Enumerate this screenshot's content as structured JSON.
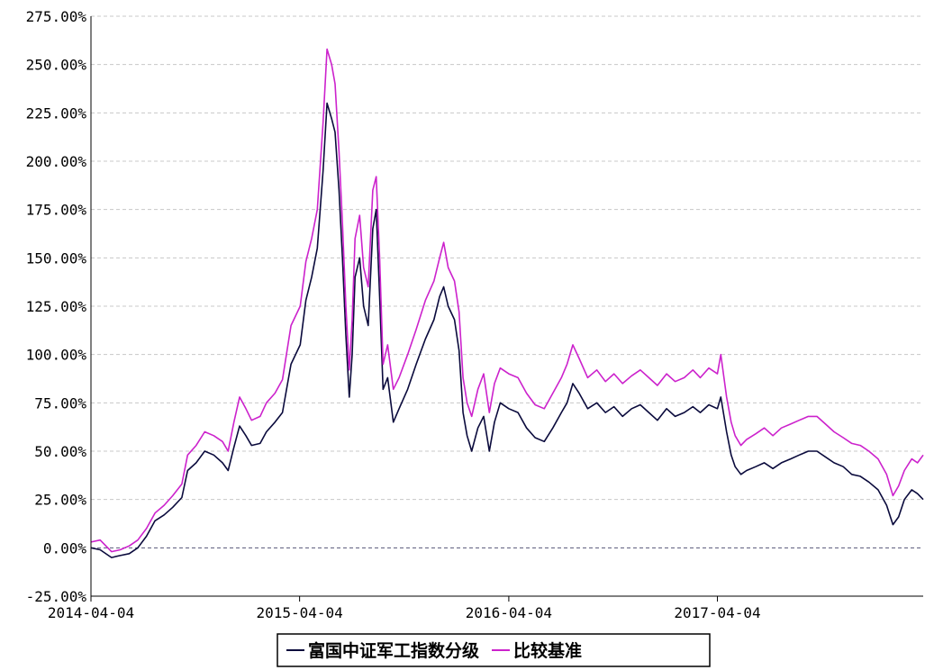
{
  "chart_data": {
    "type": "line",
    "title": "",
    "xlabel": "",
    "ylabel": "",
    "ylim": [
      -25,
      275
    ],
    "y_ticks": [
      "-25.00%",
      "0.00%",
      "25.00%",
      "50.00%",
      "75.00%",
      "100.00%",
      "125.00%",
      "150.00%",
      "175.00%",
      "200.00%",
      "225.00%",
      "250.00%",
      "275.00%"
    ],
    "x_range": [
      "2014-04-04",
      "2018-03-30"
    ],
    "x_ticks": [
      "2014-04-04",
      "2015-04-04",
      "2016-04-04",
      "2017-04-04"
    ],
    "grid": "horizontal-dashed",
    "legend_position": "bottom-center",
    "series": [
      {
        "name": "富国中证军工指数分级",
        "color": "#0a0a3c",
        "points": [
          [
            "2014-04-04",
            0
          ],
          [
            "2014-04-20",
            -1
          ],
          [
            "2014-05-10",
            -5
          ],
          [
            "2014-05-25",
            -4
          ],
          [
            "2014-06-10",
            -3
          ],
          [
            "2014-06-25",
            0
          ],
          [
            "2014-07-10",
            6
          ],
          [
            "2014-07-25",
            14
          ],
          [
            "2014-08-10",
            17
          ],
          [
            "2014-08-25",
            21
          ],
          [
            "2014-09-10",
            26
          ],
          [
            "2014-09-20",
            40
          ],
          [
            "2014-10-05",
            44
          ],
          [
            "2014-10-20",
            50
          ],
          [
            "2014-11-05",
            48
          ],
          [
            "2014-11-20",
            44
          ],
          [
            "2014-11-30",
            40
          ],
          [
            "2014-12-10",
            52
          ],
          [
            "2014-12-20",
            63
          ],
          [
            "2014-12-31",
            58
          ],
          [
            "2015-01-10",
            53
          ],
          [
            "2015-01-25",
            54
          ],
          [
            "2015-02-05",
            60
          ],
          [
            "2015-02-20",
            65
          ],
          [
            "2015-03-05",
            70
          ],
          [
            "2015-03-20",
            95
          ],
          [
            "2015-04-05",
            105
          ],
          [
            "2015-04-15",
            128
          ],
          [
            "2015-04-25",
            140
          ],
          [
            "2015-05-05",
            155
          ],
          [
            "2015-05-15",
            195
          ],
          [
            "2015-05-22",
            230
          ],
          [
            "2015-05-30",
            222
          ],
          [
            "2015-06-05",
            215
          ],
          [
            "2015-06-12",
            185
          ],
          [
            "2015-06-18",
            150
          ],
          [
            "2015-06-24",
            110
          ],
          [
            "2015-06-30",
            78
          ],
          [
            "2015-07-05",
            100
          ],
          [
            "2015-07-10",
            140
          ],
          [
            "2015-07-18",
            150
          ],
          [
            "2015-07-25",
            125
          ],
          [
            "2015-08-02",
            115
          ],
          [
            "2015-08-10",
            165
          ],
          [
            "2015-08-16",
            175
          ],
          [
            "2015-08-22",
            130
          ],
          [
            "2015-08-28",
            82
          ],
          [
            "2015-09-05",
            88
          ],
          [
            "2015-09-15",
            65
          ],
          [
            "2015-09-25",
            72
          ],
          [
            "2015-10-10",
            82
          ],
          [
            "2015-10-25",
            95
          ],
          [
            "2015-11-10",
            108
          ],
          [
            "2015-11-25",
            118
          ],
          [
            "2015-12-05",
            130
          ],
          [
            "2015-12-12",
            135
          ],
          [
            "2015-12-20",
            125
          ],
          [
            "2015-12-31",
            118
          ],
          [
            "2016-01-08",
            102
          ],
          [
            "2016-01-15",
            70
          ],
          [
            "2016-01-22",
            58
          ],
          [
            "2016-01-30",
            50
          ],
          [
            "2016-02-10",
            62
          ],
          [
            "2016-02-20",
            68
          ],
          [
            "2016-03-01",
            50
          ],
          [
            "2016-03-10",
            65
          ],
          [
            "2016-03-20",
            75
          ],
          [
            "2016-04-04",
            72
          ],
          [
            "2016-04-20",
            70
          ],
          [
            "2016-05-05",
            62
          ],
          [
            "2016-05-20",
            57
          ],
          [
            "2016-06-05",
            55
          ],
          [
            "2016-06-20",
            62
          ],
          [
            "2016-07-05",
            70
          ],
          [
            "2016-07-15",
            75
          ],
          [
            "2016-07-25",
            85
          ],
          [
            "2016-08-05",
            80
          ],
          [
            "2016-08-20",
            72
          ],
          [
            "2016-09-05",
            75
          ],
          [
            "2016-09-20",
            70
          ],
          [
            "2016-10-05",
            73
          ],
          [
            "2016-10-20",
            68
          ],
          [
            "2016-11-05",
            72
          ],
          [
            "2016-11-20",
            74
          ],
          [
            "2016-12-05",
            70
          ],
          [
            "2016-12-20",
            66
          ],
          [
            "2017-01-05",
            72
          ],
          [
            "2017-01-20",
            68
          ],
          [
            "2017-02-05",
            70
          ],
          [
            "2017-02-20",
            73
          ],
          [
            "2017-03-05",
            70
          ],
          [
            "2017-03-20",
            74
          ],
          [
            "2017-04-04",
            72
          ],
          [
            "2017-04-10",
            78
          ],
          [
            "2017-04-20",
            60
          ],
          [
            "2017-04-28",
            48
          ],
          [
            "2017-05-05",
            42
          ],
          [
            "2017-05-15",
            38
          ],
          [
            "2017-05-25",
            40
          ],
          [
            "2017-06-10",
            42
          ],
          [
            "2017-06-25",
            44
          ],
          [
            "2017-07-10",
            41
          ],
          [
            "2017-07-25",
            44
          ],
          [
            "2017-08-10",
            46
          ],
          [
            "2017-08-25",
            48
          ],
          [
            "2017-09-10",
            50
          ],
          [
            "2017-09-25",
            50
          ],
          [
            "2017-10-10",
            47
          ],
          [
            "2017-10-25",
            44
          ],
          [
            "2017-11-10",
            42
          ],
          [
            "2017-11-25",
            38
          ],
          [
            "2017-12-10",
            37
          ],
          [
            "2017-12-25",
            34
          ],
          [
            "2018-01-10",
            30
          ],
          [
            "2018-01-25",
            22
          ],
          [
            "2018-02-05",
            12
          ],
          [
            "2018-02-15",
            16
          ],
          [
            "2018-02-25",
            25
          ],
          [
            "2018-03-10",
            30
          ],
          [
            "2018-03-20",
            28
          ],
          [
            "2018-03-30",
            25
          ]
        ]
      },
      {
        "name": "比较基准",
        "color": "#cc22cc",
        "points": [
          [
            "2014-04-04",
            3
          ],
          [
            "2014-04-20",
            4
          ],
          [
            "2014-05-10",
            -2
          ],
          [
            "2014-05-25",
            -1
          ],
          [
            "2014-06-10",
            1
          ],
          [
            "2014-06-25",
            4
          ],
          [
            "2014-07-10",
            10
          ],
          [
            "2014-07-25",
            18
          ],
          [
            "2014-08-10",
            22
          ],
          [
            "2014-08-25",
            27
          ],
          [
            "2014-09-10",
            33
          ],
          [
            "2014-09-20",
            48
          ],
          [
            "2014-10-05",
            53
          ],
          [
            "2014-10-20",
            60
          ],
          [
            "2014-11-05",
            58
          ],
          [
            "2014-11-20",
            55
          ],
          [
            "2014-11-30",
            50
          ],
          [
            "2014-12-10",
            65
          ],
          [
            "2014-12-20",
            78
          ],
          [
            "2014-12-31",
            72
          ],
          [
            "2015-01-10",
            66
          ],
          [
            "2015-01-25",
            68
          ],
          [
            "2015-02-05",
            75
          ],
          [
            "2015-02-20",
            80
          ],
          [
            "2015-03-05",
            87
          ],
          [
            "2015-03-20",
            115
          ],
          [
            "2015-04-05",
            125
          ],
          [
            "2015-04-15",
            148
          ],
          [
            "2015-04-25",
            160
          ],
          [
            "2015-05-05",
            175
          ],
          [
            "2015-05-15",
            220
          ],
          [
            "2015-05-22",
            258
          ],
          [
            "2015-05-30",
            250
          ],
          [
            "2015-06-05",
            240
          ],
          [
            "2015-06-12",
            205
          ],
          [
            "2015-06-18",
            168
          ],
          [
            "2015-06-24",
            125
          ],
          [
            "2015-06-30",
            92
          ],
          [
            "2015-07-05",
            118
          ],
          [
            "2015-07-10",
            160
          ],
          [
            "2015-07-18",
            172
          ],
          [
            "2015-07-25",
            145
          ],
          [
            "2015-08-02",
            135
          ],
          [
            "2015-08-10",
            185
          ],
          [
            "2015-08-16",
            192
          ],
          [
            "2015-08-22",
            150
          ],
          [
            "2015-08-28",
            95
          ],
          [
            "2015-09-05",
            105
          ],
          [
            "2015-09-15",
            82
          ],
          [
            "2015-09-25",
            88
          ],
          [
            "2015-10-10",
            100
          ],
          [
            "2015-10-25",
            113
          ],
          [
            "2015-11-10",
            128
          ],
          [
            "2015-11-25",
            138
          ],
          [
            "2015-12-05",
            150
          ],
          [
            "2015-12-12",
            158
          ],
          [
            "2015-12-20",
            145
          ],
          [
            "2015-12-31",
            138
          ],
          [
            "2016-01-08",
            122
          ],
          [
            "2016-01-15",
            88
          ],
          [
            "2016-01-22",
            75
          ],
          [
            "2016-01-30",
            68
          ],
          [
            "2016-02-10",
            82
          ],
          [
            "2016-02-20",
            90
          ],
          [
            "2016-03-01",
            70
          ],
          [
            "2016-03-10",
            85
          ],
          [
            "2016-03-20",
            93
          ],
          [
            "2016-04-04",
            90
          ],
          [
            "2016-04-20",
            88
          ],
          [
            "2016-05-05",
            80
          ],
          [
            "2016-05-20",
            74
          ],
          [
            "2016-06-05",
            72
          ],
          [
            "2016-06-20",
            80
          ],
          [
            "2016-07-05",
            88
          ],
          [
            "2016-07-15",
            95
          ],
          [
            "2016-07-25",
            105
          ],
          [
            "2016-08-05",
            98
          ],
          [
            "2016-08-20",
            88
          ],
          [
            "2016-09-05",
            92
          ],
          [
            "2016-09-20",
            86
          ],
          [
            "2016-10-05",
            90
          ],
          [
            "2016-10-20",
            85
          ],
          [
            "2016-11-05",
            89
          ],
          [
            "2016-11-20",
            92
          ],
          [
            "2016-12-05",
            88
          ],
          [
            "2016-12-20",
            84
          ],
          [
            "2017-01-05",
            90
          ],
          [
            "2017-01-20",
            86
          ],
          [
            "2017-02-05",
            88
          ],
          [
            "2017-02-20",
            92
          ],
          [
            "2017-03-05",
            88
          ],
          [
            "2017-03-20",
            93
          ],
          [
            "2017-04-04",
            90
          ],
          [
            "2017-04-10",
            100
          ],
          [
            "2017-04-20",
            78
          ],
          [
            "2017-04-28",
            65
          ],
          [
            "2017-05-05",
            58
          ],
          [
            "2017-05-15",
            53
          ],
          [
            "2017-05-25",
            56
          ],
          [
            "2017-06-10",
            59
          ],
          [
            "2017-06-25",
            62
          ],
          [
            "2017-07-10",
            58
          ],
          [
            "2017-07-25",
            62
          ],
          [
            "2017-08-10",
            64
          ],
          [
            "2017-08-25",
            66
          ],
          [
            "2017-09-10",
            68
          ],
          [
            "2017-09-25",
            68
          ],
          [
            "2017-10-10",
            64
          ],
          [
            "2017-10-25",
            60
          ],
          [
            "2017-11-10",
            57
          ],
          [
            "2017-11-25",
            54
          ],
          [
            "2017-12-10",
            53
          ],
          [
            "2017-12-25",
            50
          ],
          [
            "2018-01-10",
            46
          ],
          [
            "2018-01-25",
            38
          ],
          [
            "2018-02-05",
            27
          ],
          [
            "2018-02-15",
            32
          ],
          [
            "2018-02-25",
            40
          ],
          [
            "2018-03-10",
            46
          ],
          [
            "2018-03-20",
            44
          ],
          [
            "2018-03-30",
            48
          ]
        ]
      }
    ]
  },
  "legend": {
    "items": [
      {
        "label": "富国中证军工指数分级",
        "color": "#0a0a3c"
      },
      {
        "label": "比较基准",
        "color": "#cc22cc"
      }
    ]
  }
}
